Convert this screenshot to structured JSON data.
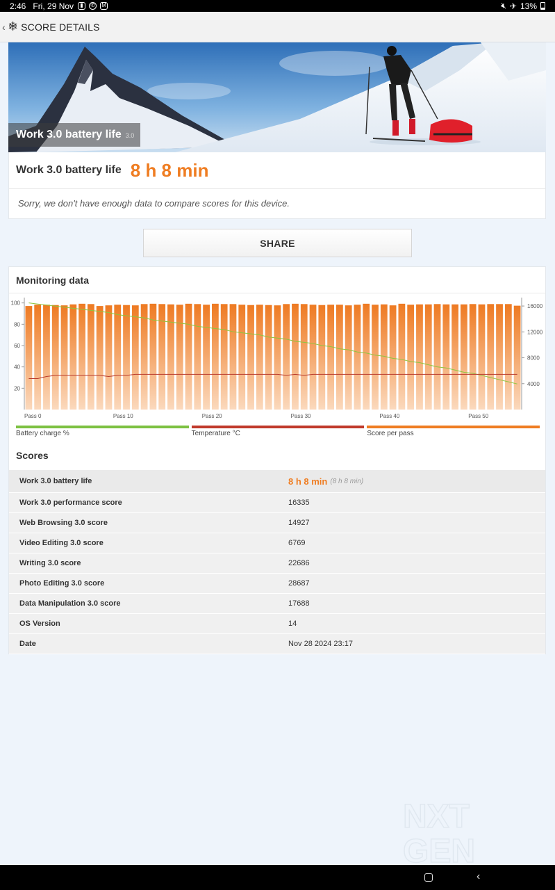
{
  "status": {
    "time": "2:46",
    "date": "Fri, 29 Nov",
    "battery": "13%",
    "icons": [
      "lock-icon",
      "whatsapp-icon",
      "gmail-icon",
      "mute-icon",
      "airplane-icon",
      "battery-icon"
    ]
  },
  "app_bar": {
    "title": "SCORE DETAILS",
    "back_icon": "chevron-left-icon",
    "logo_icon": "3dmark-logo-icon"
  },
  "hero": {
    "caption": "Work 3.0 battery life",
    "version": "3.0"
  },
  "result": {
    "label": "Work 3.0 battery life",
    "value": "8 h 8 min",
    "compare_note": "Sorry, we don't have enough data to compare scores for this device."
  },
  "share": {
    "label": "SHARE"
  },
  "monitoring": {
    "title": "Monitoring data",
    "legend": [
      {
        "label": "Battery charge %",
        "color": "#7dc142"
      },
      {
        "label": "Temperature °C",
        "color": "#c0392b"
      },
      {
        "label": "Score per pass",
        "color": "#ef7d22"
      }
    ]
  },
  "chart_data": {
    "type": "bar",
    "x_tick_labels": [
      "Pass 0",
      "Pass 10",
      "Pass 20",
      "Pass 30",
      "Pass 40",
      "Pass 50"
    ],
    "x_ticks": [
      0,
      10,
      20,
      30,
      40,
      50
    ],
    "left_axis": {
      "ticks": [
        20,
        40,
        60,
        80,
        100
      ],
      "ylim": [
        0,
        105
      ]
    },
    "right_axis": {
      "ticks": [
        4000,
        8000,
        12000,
        16000
      ],
      "ylim": [
        0,
        17300
      ]
    },
    "series": [
      {
        "name": "Score per pass",
        "axis": "right",
        "color": "#ef7d22",
        "values": [
          16000,
          16200,
          16200,
          16150,
          16100,
          16250,
          16350,
          16300,
          16000,
          16100,
          16200,
          16150,
          16100,
          16300,
          16350,
          16300,
          16250,
          16200,
          16350,
          16300,
          16200,
          16350,
          16300,
          16300,
          16200,
          16150,
          16200,
          16150,
          16100,
          16300,
          16350,
          16300,
          16200,
          16150,
          16200,
          16200,
          16100,
          16200,
          16350,
          16200,
          16250,
          16100,
          16350,
          16200,
          16250,
          16250,
          16300,
          16250,
          16250,
          16250,
          16300,
          16250,
          16300,
          16300,
          16300,
          16050
        ]
      },
      {
        "name": "Battery charge %",
        "axis": "left",
        "color": "#8dc63f",
        "values": [
          100,
          99,
          98,
          97,
          96,
          95,
          94,
          93,
          92,
          91,
          89,
          88,
          87,
          86,
          84,
          83,
          82,
          81,
          80,
          78,
          77,
          76,
          75,
          73,
          72,
          71,
          70,
          68,
          67,
          66,
          64,
          63,
          62,
          60,
          59,
          57,
          56,
          54,
          53,
          51,
          50,
          48,
          47,
          45,
          44,
          42,
          40,
          39,
          37,
          35,
          34,
          32,
          30,
          28,
          26,
          24
        ]
      },
      {
        "name": "Temperature °C",
        "axis": "left",
        "color": "#b8392b",
        "values": [
          29,
          29,
          31,
          32,
          32,
          32,
          32,
          32,
          32,
          31,
          32,
          32,
          33,
          33,
          33,
          33,
          33,
          33,
          33,
          33,
          33,
          33,
          33,
          33,
          33,
          33,
          33,
          33,
          33,
          32,
          33,
          32,
          33,
          33,
          33,
          33,
          33,
          33,
          33,
          33,
          33,
          33,
          33,
          33,
          33,
          33,
          33,
          33,
          33,
          33,
          33,
          33,
          33,
          33,
          33,
          33
        ]
      }
    ],
    "grid": false
  },
  "scores": {
    "title": "Scores",
    "rows": [
      {
        "name": "Work 3.0 battery life",
        "value": "8 h 8 min",
        "sub": "(8 h 8 min)"
      },
      {
        "name": "Work 3.0 performance score",
        "value": "16335"
      },
      {
        "name": "Web Browsing 3.0 score",
        "value": "14927"
      },
      {
        "name": "Video Editing 3.0 score",
        "value": "6769"
      },
      {
        "name": "Writing 3.0 score",
        "value": "22686"
      },
      {
        "name": "Photo Editing 3.0 score",
        "value": "28687"
      },
      {
        "name": "Data Manipulation 3.0 score",
        "value": "17688"
      },
      {
        "name": "OS Version",
        "value": "14"
      },
      {
        "name": "Date",
        "value": "Nov 28 2024 23:17"
      }
    ]
  },
  "watermark": {
    "text": "NXT GEN"
  },
  "nav": {
    "home_icon": "home-icon",
    "back_icon": "back-icon"
  }
}
